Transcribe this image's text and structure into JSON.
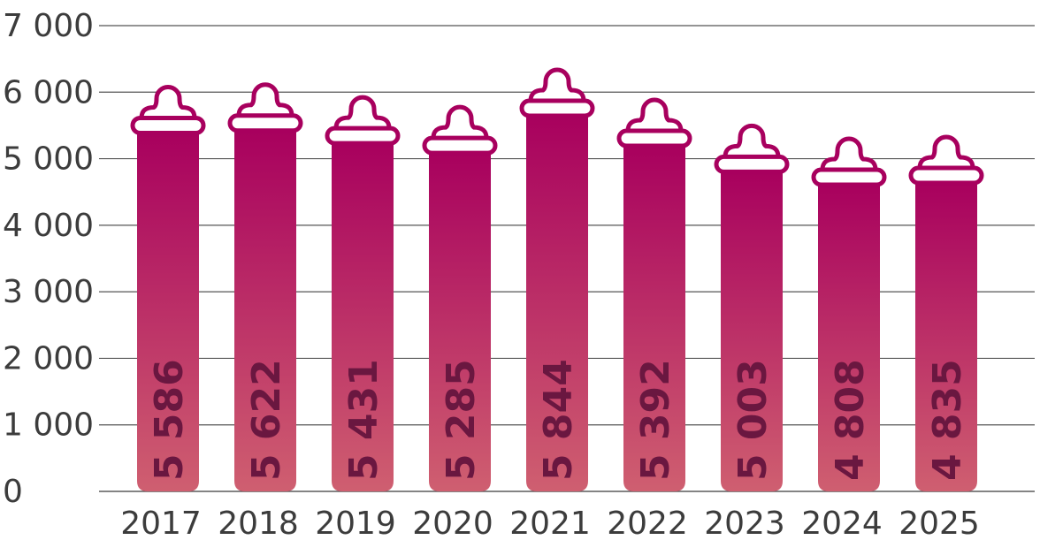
{
  "chart_data": {
    "type": "bar",
    "title": "",
    "xlabel": "",
    "ylabel": "",
    "categories": [
      "2017",
      "2018",
      "2019",
      "2020",
      "2021",
      "2022",
      "2023",
      "2024",
      "2025"
    ],
    "values": [
      5586,
      5622,
      5431,
      5285,
      5844,
      5392,
      5003,
      4808,
      4835
    ],
    "value_labels": [
      "5 586",
      "5 622",
      "5 431",
      "5 285",
      "5 844",
      "5 392",
      "5 003",
      "4 808",
      "4 835"
    ],
    "ylim": [
      0,
      7000
    ],
    "yticks": [
      {
        "value": 0,
        "label": "0"
      },
      {
        "value": 1000,
        "label": "1 000"
      },
      {
        "value": 2000,
        "label": "2 000"
      },
      {
        "value": 3000,
        "label": "3 000"
      },
      {
        "value": 4000,
        "label": "4 000"
      },
      {
        "value": 5000,
        "label": "5 000"
      },
      {
        "value": 6000,
        "label": "6 000"
      },
      {
        "value": 7000,
        "label": "7 000"
      }
    ],
    "grid": true,
    "bar_style": "baby bottle",
    "colors": {
      "bar_top": "#a8005e",
      "bar_bottom": "#cf5f70",
      "outline": "#a8005e",
      "value_label": "#6a1740",
      "axis_text": "#3c3c3c"
    }
  }
}
